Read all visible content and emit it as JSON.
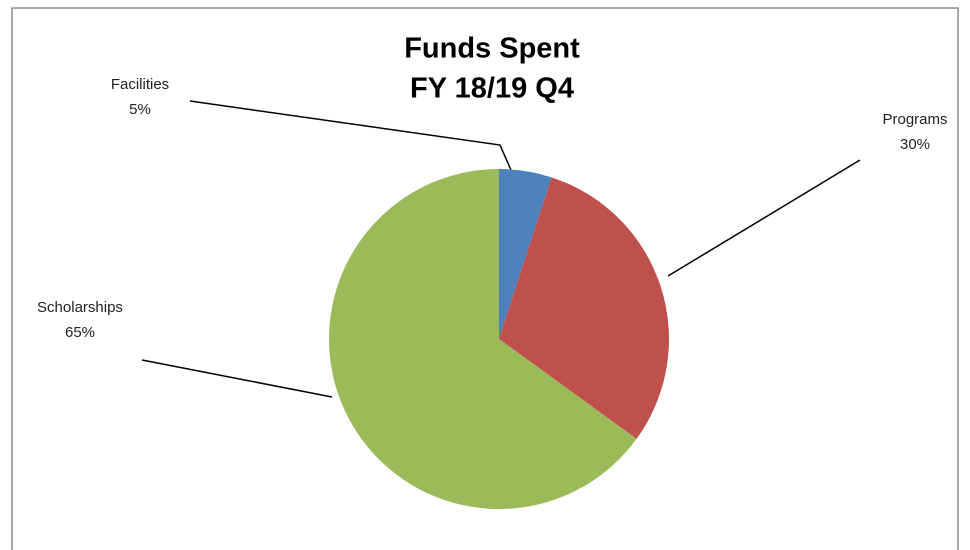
{
  "chart_data": {
    "type": "pie",
    "title": [
      "Funds Spent",
      "FY 18/19 Q4"
    ],
    "categories": [
      "Facilities",
      "Programs",
      "Scholarships"
    ],
    "values": [
      5,
      30,
      65
    ],
    "value_labels": [
      "5%",
      "30%",
      "65%"
    ],
    "colors": [
      "#4f81bd",
      "#c0504d",
      "#9bbb59"
    ]
  }
}
